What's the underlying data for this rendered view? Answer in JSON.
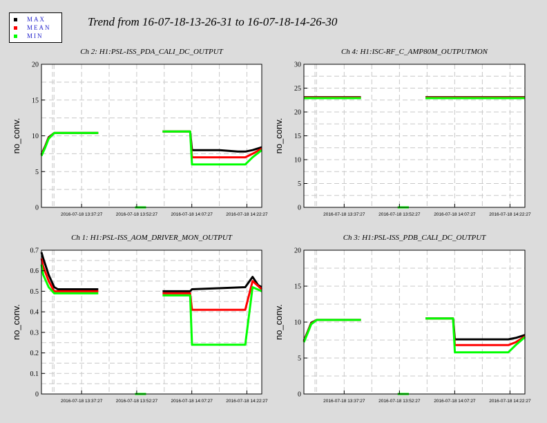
{
  "title": "Trend from 16-07-18-13-26-31 to 16-07-18-14-26-30",
  "legend": [
    {
      "label": "MAX",
      "color": "#000000"
    },
    {
      "label": "MEAN",
      "color": "#ff0000"
    },
    {
      "label": "MIN",
      "color": "#00ff00"
    }
  ],
  "colors": {
    "background": "#dcdcdc",
    "plot": "#ffffff",
    "grid": "#c8c8c8",
    "max": "#000000",
    "mean": "#ff0000",
    "min": "#00ff00"
  },
  "chart_data": [
    {
      "type": "line",
      "title": "Ch 2: H1:PSL-ISS_PDA_CALI_DC_OUTPUT",
      "ylabel": "no_conv.",
      "xlabel": "",
      "ylim": [
        0,
        20
      ],
      "yticks": [
        0,
        5,
        10,
        15,
        20
      ],
      "xticks": [
        "2016-07-18 13:37:27",
        "2016-07-18 13:52:27",
        "2016-07-18 14:07:27",
        "2016-07-18 14:22:27"
      ],
      "grid": true,
      "series": [
        {
          "name": "MAX",
          "color": "#000000",
          "segments": [
            {
              "x": [
                "13:26:31",
                "13:27:30",
                "13:28:30",
                "13:30:00",
                "13:31:00",
                "13:37:00",
                "13:42:00"
              ],
              "y": [
                7.4,
                8.5,
                9.8,
                10.4,
                10.4,
                10.4,
                10.4
              ]
            },
            {
              "x": [
                "13:52:00",
                "13:55:00"
              ],
              "y": [
                0,
                0
              ]
            },
            {
              "x": [
                "13:59:30",
                "14:05:00",
                "14:07:00",
                "14:07:30",
                "14:10:00",
                "14:15:00",
                "14:20:00",
                "14:22:00",
                "14:24:00",
                "14:26:30"
              ],
              "y": [
                10.6,
                10.6,
                10.6,
                8.0,
                8.0,
                8.0,
                7.8,
                7.8,
                8.0,
                8.4
              ]
            }
          ]
        },
        {
          "name": "MEAN",
          "color": "#ff0000",
          "segments": [
            {
              "x": [
                "13:26:31",
                "13:27:30",
                "13:28:30",
                "13:30:00",
                "13:42:00"
              ],
              "y": [
                7.3,
                8.4,
                9.7,
                10.4,
                10.4
              ]
            },
            {
              "x": [
                "13:52:00",
                "13:55:00"
              ],
              "y": [
                0,
                0
              ]
            },
            {
              "x": [
                "13:59:30",
                "14:07:00",
                "14:07:30",
                "14:15:00",
                "14:22:00",
                "14:24:00",
                "14:26:30"
              ],
              "y": [
                10.6,
                10.6,
                7.0,
                7.0,
                7.0,
                7.5,
                8.2
              ]
            }
          ]
        },
        {
          "name": "MIN",
          "color": "#00ff00",
          "segments": [
            {
              "x": [
                "13:26:31",
                "13:27:30",
                "13:28:30",
                "13:30:00",
                "13:42:00"
              ],
              "y": [
                7.2,
                8.3,
                9.6,
                10.4,
                10.4
              ]
            },
            {
              "x": [
                "13:52:00",
                "13:55:00"
              ],
              "y": [
                0,
                0
              ]
            },
            {
              "x": [
                "13:59:30",
                "14:07:00",
                "14:07:30",
                "14:15:00",
                "14:22:00",
                "14:24:00",
                "14:26:30"
              ],
              "y": [
                10.6,
                10.6,
                6.0,
                6.0,
                6.0,
                7.0,
                8.0
              ]
            }
          ]
        }
      ]
    },
    {
      "type": "line",
      "title": "Ch 4: H1:ISC-RF_C_AMP80M_OUTPUTMON",
      "ylabel": "no_conv.",
      "xlabel": "",
      "ylim": [
        0,
        30
      ],
      "yticks": [
        0,
        5,
        10,
        15,
        20,
        25,
        30
      ],
      "xticks": [
        "2016-07-18 13:37:27",
        "2016-07-18 13:52:27",
        "2016-07-18 14:07:27",
        "2016-07-18 14:22:27"
      ],
      "grid": true,
      "series": [
        {
          "name": "MAX",
          "color": "#000000",
          "segments": [
            {
              "x": [
                "13:26:31",
                "13:42:00"
              ],
              "y": [
                23.1,
                23.1
              ]
            },
            {
              "x": [
                "13:52:00",
                "13:55:00"
              ],
              "y": [
                0,
                0
              ]
            },
            {
              "x": [
                "13:59:30",
                "14:26:30"
              ],
              "y": [
                23.1,
                23.1
              ]
            }
          ]
        },
        {
          "name": "MEAN",
          "color": "#ff0000",
          "segments": [
            {
              "x": [
                "13:26:31",
                "13:42:00"
              ],
              "y": [
                23.0,
                23.0
              ]
            },
            {
              "x": [
                "13:52:00",
                "13:55:00"
              ],
              "y": [
                0,
                0
              ]
            },
            {
              "x": [
                "13:59:30",
                "14:26:30"
              ],
              "y": [
                23.0,
                23.0
              ]
            }
          ]
        },
        {
          "name": "MIN",
          "color": "#00ff00",
          "segments": [
            {
              "x": [
                "13:26:31",
                "13:42:00"
              ],
              "y": [
                22.9,
                22.9
              ]
            },
            {
              "x": [
                "13:52:00",
                "13:55:00"
              ],
              "y": [
                0,
                0
              ]
            },
            {
              "x": [
                "13:59:30",
                "14:26:30"
              ],
              "y": [
                22.9,
                22.9
              ]
            }
          ]
        }
      ]
    },
    {
      "type": "line",
      "title": "Ch 1: H1:PSL-ISS_AOM_DRIVER_MON_OUTPUT",
      "ylabel": "no_conv.",
      "xlabel": "",
      "ylim": [
        0,
        0.7
      ],
      "yticks": [
        0,
        0.1,
        0.2,
        0.3,
        0.4,
        0.5,
        0.6,
        0.7
      ],
      "xticks": [
        "2016-07-18 13:37:27",
        "2016-07-18 13:52:27",
        "2016-07-18 14:07:27",
        "2016-07-18 14:22:27"
      ],
      "grid": true,
      "series": [
        {
          "name": "MAX",
          "color": "#000000",
          "segments": [
            {
              "x": [
                "13:26:31",
                "13:27:00",
                "13:28:30",
                "13:30:00",
                "13:31:00",
                "13:33:00",
                "13:42:00"
              ],
              "y": [
                0.69,
                0.66,
                0.58,
                0.52,
                0.51,
                0.51,
                0.51
              ]
            },
            {
              "x": [
                "13:52:00",
                "13:55:00"
              ],
              "y": [
                0,
                0
              ]
            },
            {
              "x": [
                "13:59:30",
                "14:07:00",
                "14:07:30",
                "14:22:00",
                "14:24:00",
                "14:25:30",
                "14:26:30"
              ],
              "y": [
                0.5,
                0.5,
                0.51,
                0.52,
                0.57,
                0.53,
                0.52
              ]
            }
          ]
        },
        {
          "name": "MEAN",
          "color": "#ff0000",
          "segments": [
            {
              "x": [
                "13:26:31",
                "13:27:00",
                "13:28:30",
                "13:30:00",
                "13:31:00",
                "13:42:00"
              ],
              "y": [
                0.66,
                0.62,
                0.55,
                0.5,
                0.5,
                0.5
              ]
            },
            {
              "x": [
                "13:52:00",
                "13:55:00"
              ],
              "y": [
                0,
                0
              ]
            },
            {
              "x": [
                "13:59:30",
                "14:07:00",
                "14:07:30",
                "14:22:00",
                "14:24:00",
                "14:26:30"
              ],
              "y": [
                0.49,
                0.49,
                0.41,
                0.41,
                0.55,
                0.51
              ]
            }
          ]
        },
        {
          "name": "MIN",
          "color": "#00ff00",
          "segments": [
            {
              "x": [
                "13:26:31",
                "13:27:00",
                "13:28:30",
                "13:30:00",
                "13:31:00",
                "13:42:00"
              ],
              "y": [
                0.63,
                0.58,
                0.52,
                0.49,
                0.49,
                0.49
              ]
            },
            {
              "x": [
                "13:52:00",
                "13:55:00"
              ],
              "y": [
                0,
                0
              ]
            },
            {
              "x": [
                "13:59:30",
                "14:07:00",
                "14:07:30",
                "14:22:00",
                "14:24:00",
                "14:26:30"
              ],
              "y": [
                0.48,
                0.48,
                0.24,
                0.24,
                0.52,
                0.5
              ]
            }
          ]
        }
      ]
    },
    {
      "type": "line",
      "title": "Ch 3: H1:PSL-ISS_PDB_CALI_DC_OUTPUT",
      "ylabel": "no_conv.",
      "xlabel": "",
      "ylim": [
        0,
        20
      ],
      "yticks": [
        0,
        5,
        10,
        15,
        20
      ],
      "xticks": [
        "2016-07-18 13:37:27",
        "2016-07-18 13:52:27",
        "2016-07-18 14:07:27",
        "2016-07-18 14:22:27"
      ],
      "grid": true,
      "series": [
        {
          "name": "MAX",
          "color": "#000000",
          "segments": [
            {
              "x": [
                "13:26:31",
                "13:27:30",
                "13:28:30",
                "13:30:00",
                "13:42:00"
              ],
              "y": [
                7.4,
                8.6,
                9.9,
                10.3,
                10.3
              ]
            },
            {
              "x": [
                "13:52:00",
                "13:55:00"
              ],
              "y": [
                0,
                0
              ]
            },
            {
              "x": [
                "13:59:30",
                "14:07:00",
                "14:07:30",
                "14:15:00",
                "14:22:00",
                "14:24:00",
                "14:26:30"
              ],
              "y": [
                10.5,
                10.5,
                7.6,
                7.6,
                7.6,
                7.8,
                8.2
              ]
            }
          ]
        },
        {
          "name": "MEAN",
          "color": "#ff0000",
          "segments": [
            {
              "x": [
                "13:26:31",
                "13:27:30",
                "13:28:30",
                "13:30:00",
                "13:42:00"
              ],
              "y": [
                7.3,
                8.5,
                9.8,
                10.3,
                10.3
              ]
            },
            {
              "x": [
                "13:52:00",
                "13:55:00"
              ],
              "y": [
                0,
                0
              ]
            },
            {
              "x": [
                "13:59:30",
                "14:07:00",
                "14:07:30",
                "14:15:00",
                "14:22:00",
                "14:24:00",
                "14:26:30"
              ],
              "y": [
                10.5,
                10.5,
                6.8,
                6.8,
                6.8,
                7.2,
                8.0
              ]
            }
          ]
        },
        {
          "name": "MIN",
          "color": "#00ff00",
          "segments": [
            {
              "x": [
                "13:26:31",
                "13:27:30",
                "13:28:30",
                "13:30:00",
                "13:42:00"
              ],
              "y": [
                7.2,
                8.4,
                9.7,
                10.3,
                10.3
              ]
            },
            {
              "x": [
                "13:52:00",
                "13:55:00"
              ],
              "y": [
                0,
                0
              ]
            },
            {
              "x": [
                "13:59:30",
                "14:07:00",
                "14:07:30",
                "14:15:00",
                "14:22:00",
                "14:24:00",
                "14:26:30"
              ],
              "y": [
                10.5,
                10.5,
                5.8,
                5.8,
                5.8,
                6.8,
                7.9
              ]
            }
          ]
        }
      ]
    }
  ]
}
